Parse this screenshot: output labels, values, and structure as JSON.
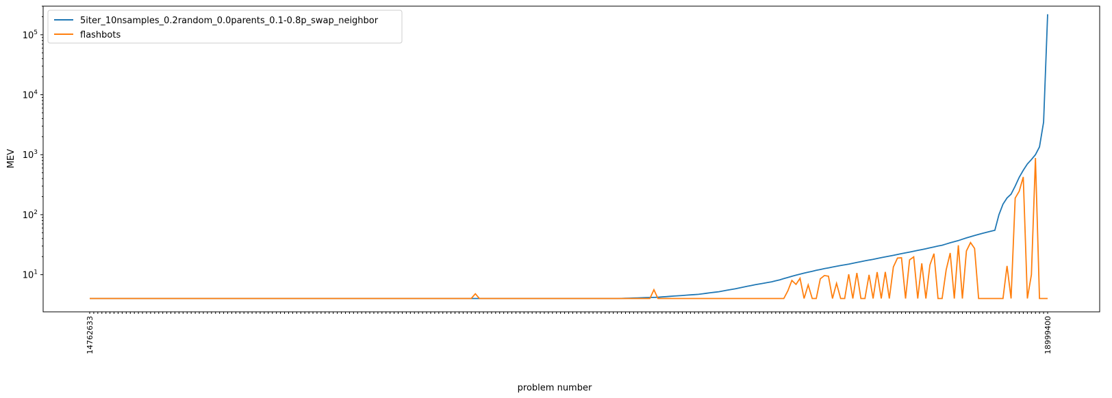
{
  "chart_data": {
    "type": "line",
    "xlabel": "problem number",
    "ylabel": "MEV",
    "yscale": "log",
    "ylim": [
      2.4,
      300000
    ],
    "y_ticks": [
      {
        "value": 10,
        "base": "10",
        "exp": "1"
      },
      {
        "value": 100,
        "base": "10",
        "exp": "2"
      },
      {
        "value": 1000,
        "base": "10",
        "exp": "3"
      },
      {
        "value": 10000,
        "base": "10",
        "exp": "4"
      },
      {
        "value": 100000,
        "base": "10",
        "exp": "5"
      }
    ],
    "x_tick_labels_note": "x tick labels are problem ids rotated 90 degrees; printed labels are overlapping and illegible, so only the partially legible first and last are recorded",
    "x_tick_labels": [
      "14762633",
      "18999400"
    ],
    "legend": {
      "placement": "upper left"
    },
    "series": [
      {
        "name": "5iter_10nsamples_0.2random_0.0parents_0.1-0.8p_swap_neighbor",
        "color": "#1f77b4",
        "values": [
          4,
          4,
          4,
          4,
          4,
          4,
          4,
          4,
          4,
          4,
          4,
          4,
          4,
          4,
          4,
          4,
          4,
          4,
          4,
          4,
          4,
          4,
          4,
          4,
          4,
          4,
          4,
          4,
          4,
          4,
          4,
          4,
          4,
          4,
          4,
          4,
          4,
          4,
          4,
          4,
          4,
          4,
          4,
          4,
          4,
          4,
          4,
          4,
          4,
          4,
          4,
          4,
          4,
          4,
          4,
          4,
          4,
          4,
          4,
          4,
          4,
          4,
          4,
          4,
          4,
          4,
          4,
          4,
          4,
          4,
          4,
          4,
          4,
          4,
          4,
          4,
          4,
          4,
          4,
          4,
          4,
          4,
          4,
          4,
          4,
          4,
          4,
          4,
          4,
          4,
          4,
          4,
          4,
          4,
          4,
          4,
          4,
          4,
          4,
          4,
          4,
          4,
          4,
          4,
          4,
          4,
          4,
          4,
          4,
          4,
          4,
          4,
          4,
          4,
          4,
          4,
          4,
          4,
          4,
          4,
          4,
          4,
          4,
          4,
          4,
          4,
          4,
          4,
          4,
          4,
          4,
          4.02,
          4.04,
          4.06,
          4.08,
          4.1,
          4.12,
          4.14,
          4.16,
          4.18,
          4.2,
          4.25,
          4.3,
          4.35,
          4.4,
          4.45,
          4.5,
          4.55,
          4.6,
          4.65,
          4.7,
          4.8,
          4.9,
          5,
          5.1,
          5.2,
          5.35,
          5.5,
          5.65,
          5.8,
          6,
          6.2,
          6.4,
          6.6,
          6.8,
          7,
          7.2,
          7.4,
          7.6,
          7.9,
          8.2,
          8.6,
          9,
          9.4,
          9.8,
          10.2,
          10.6,
          11,
          11.4,
          11.8,
          12.2,
          12.6,
          13,
          13.4,
          13.8,
          14.2,
          14.6,
          15,
          15.5,
          16,
          16.5,
          17,
          17.5,
          18,
          18.6,
          19.2,
          19.8,
          20.4,
          21,
          21.7,
          22.4,
          23.1,
          23.8,
          24.6,
          25.4,
          26.2,
          27,
          28,
          29,
          30,
          31,
          32.5,
          34,
          35.5,
          37,
          39,
          41,
          43,
          45,
          47,
          49,
          51,
          53,
          55,
          100,
          150,
          190,
          220,
          300,
          420,
          550,
          700,
          830,
          1000,
          1350,
          3500,
          220000
        ],
        "values_note": "295 points ascending; leading flat region at ~4"
      },
      {
        "name": "flashbots",
        "color": "#ff7f0e",
        "spikes": [
          {
            "index": 95,
            "value": 4.8
          },
          {
            "index": 139,
            "value": 5.6
          },
          {
            "index": 173,
            "value": 8
          },
          {
            "index": 211,
            "value": 12
          },
          {
            "index": 226,
            "value": 14
          },
          {
            "index": 232,
            "value": 10
          },
          {
            "index": 241,
            "value": 18
          },
          {
            "index": 245,
            "value": 17
          },
          {
            "index": 256,
            "value": 100
          },
          {
            "index": 263,
            "value": 27
          },
          {
            "index": 270,
            "value": 30
          },
          {
            "index": 278,
            "value": 45
          },
          {
            "index": 290,
            "value": 420
          }
        ],
        "baseline": 4,
        "values_note": "mostly at baseline 4 with spikes; intermediate noisy values approximated"
      }
    ]
  }
}
